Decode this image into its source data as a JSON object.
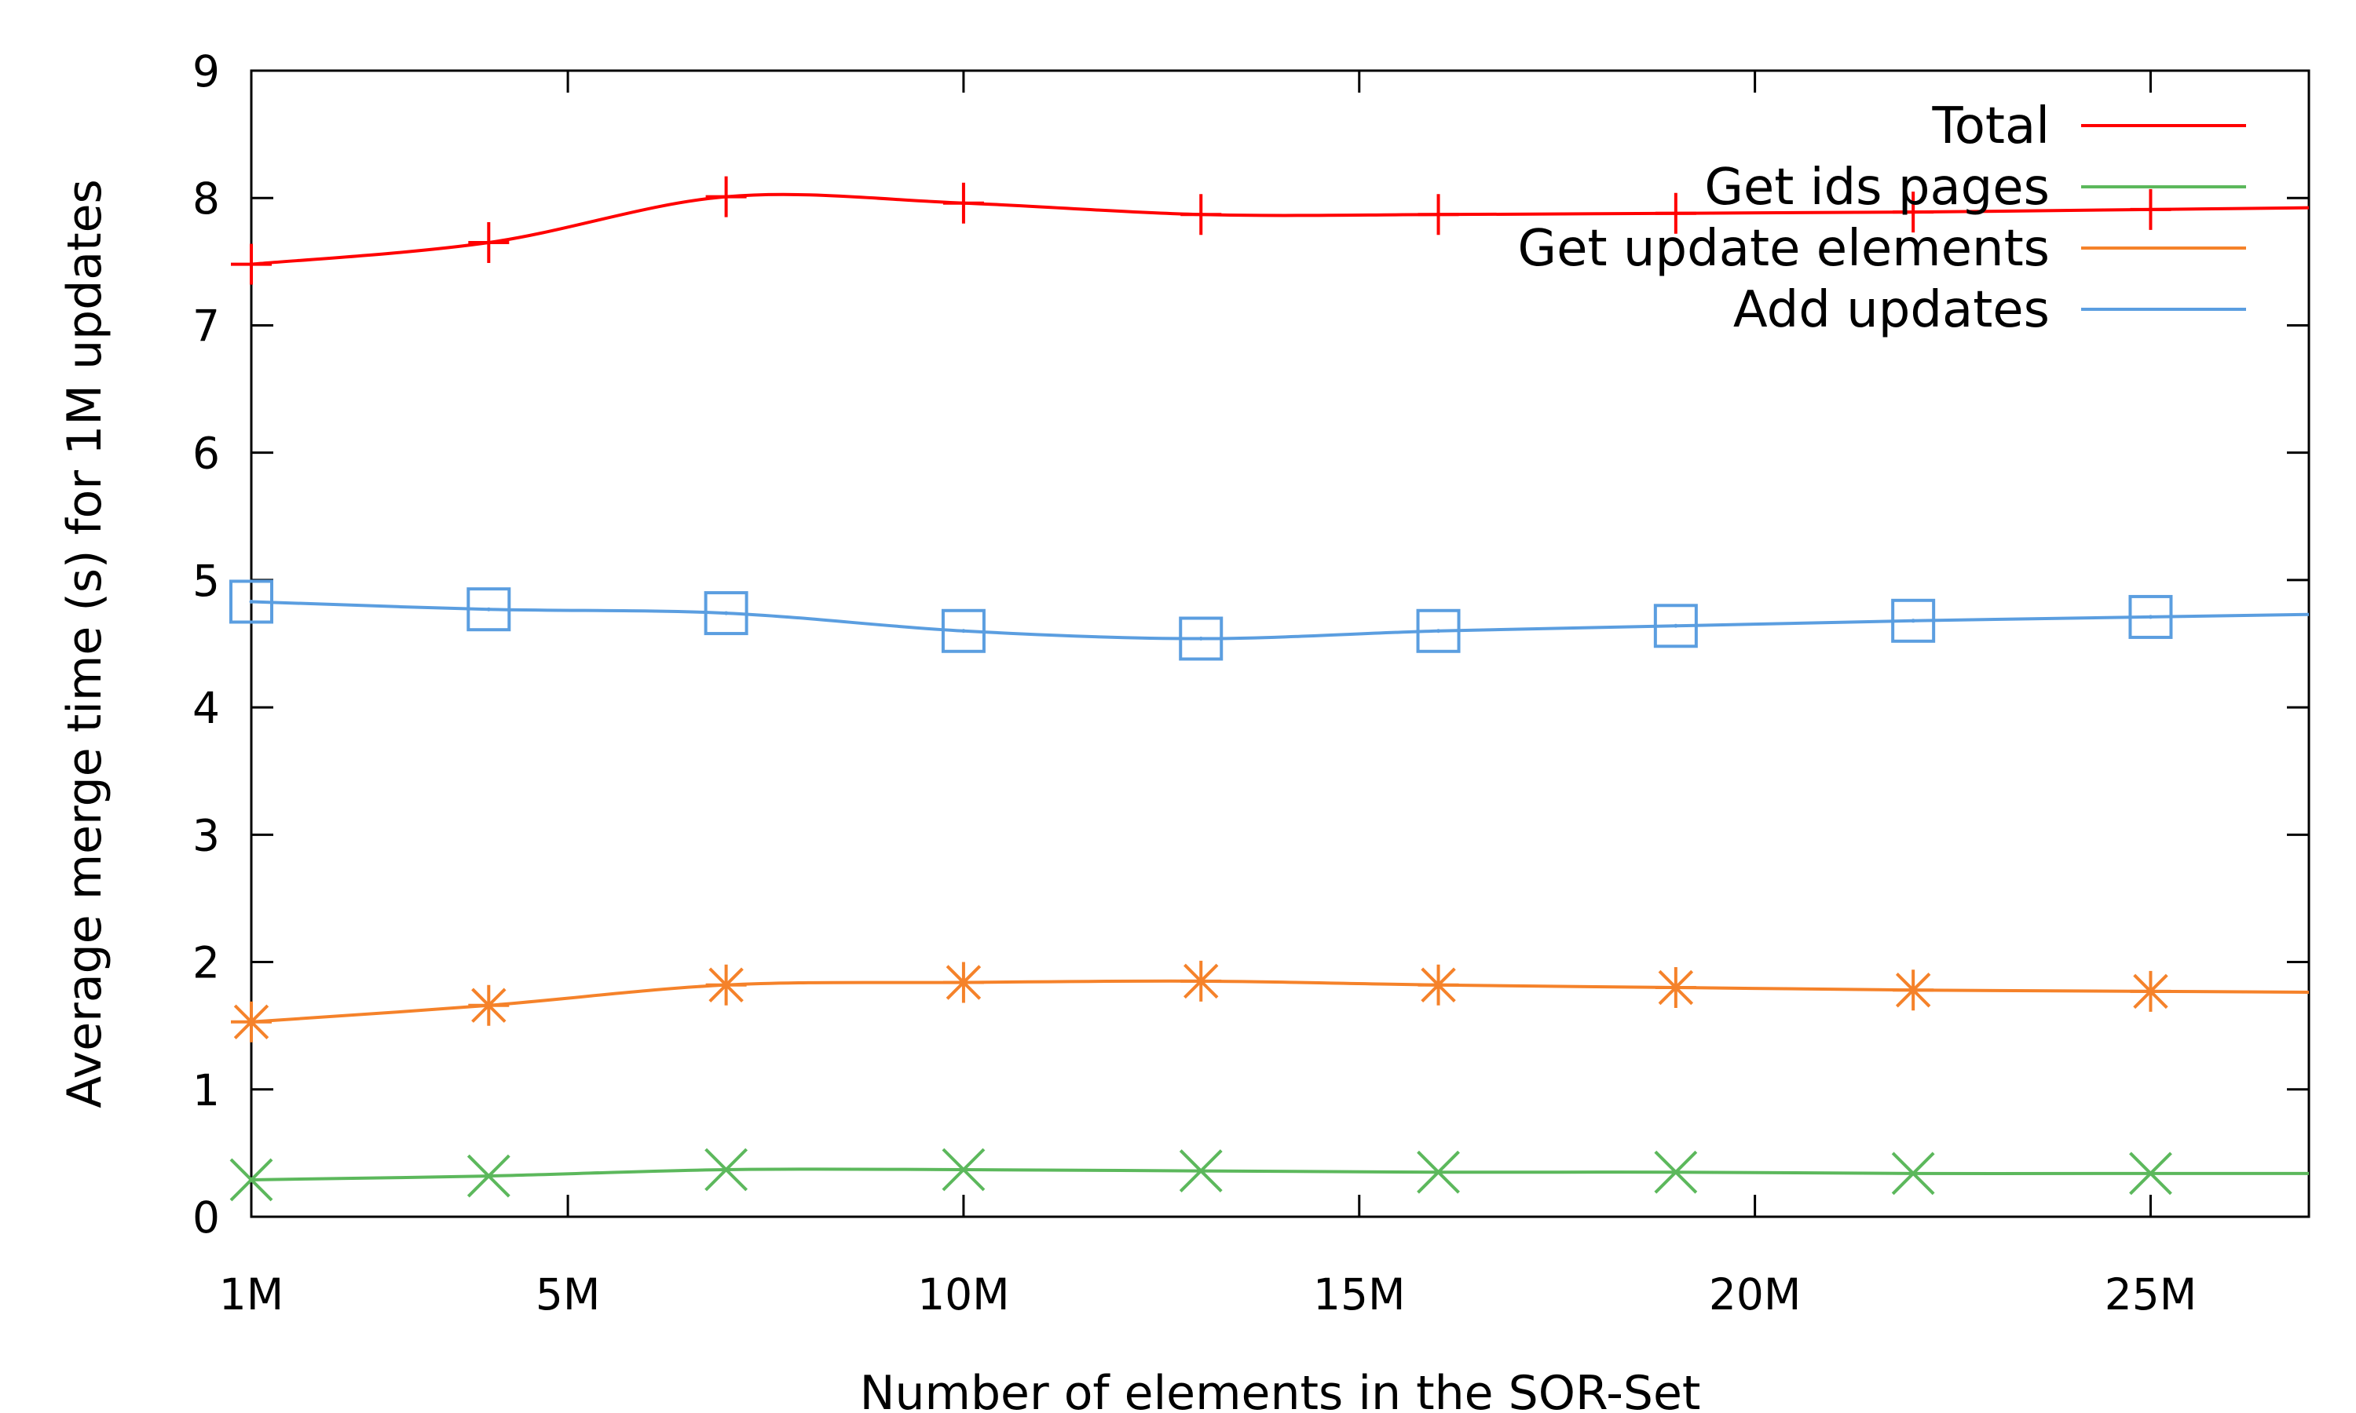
{
  "chart_data": {
    "type": "line",
    "title": "",
    "xlabel": "Number of elements in the SOR-Set",
    "ylabel": "Average merge time (s) for 1M updates",
    "xlim": [
      1,
      27
    ],
    "ylim": [
      0,
      9
    ],
    "x_ticks": [
      {
        "value": 1,
        "label": "1M"
      },
      {
        "value": 5,
        "label": "5M"
      },
      {
        "value": 10,
        "label": "10M"
      },
      {
        "value": 15,
        "label": "15M"
      },
      {
        "value": 20,
        "label": "20M"
      },
      {
        "value": 25,
        "label": "25M"
      }
    ],
    "y_ticks": [
      0,
      1,
      2,
      3,
      4,
      5,
      6,
      7,
      8,
      9
    ],
    "grid": false,
    "legend_position": "top-right",
    "x": [
      1,
      4,
      7,
      10,
      13,
      16,
      19,
      22,
      25
    ],
    "series": [
      {
        "name": "Total",
        "color": "#ff0000",
        "marker": "plus",
        "values": [
          7.48,
          7.65,
          8.01,
          7.96,
          7.87,
          7.87,
          7.88,
          7.89,
          7.91
        ]
      },
      {
        "name": "Get ids pages",
        "color": "#5cb85c",
        "marker": "cross",
        "values": [
          0.29,
          0.32,
          0.37,
          0.37,
          0.36,
          0.35,
          0.35,
          0.34,
          0.34
        ]
      },
      {
        "name": "Get update elements",
        "color": "#f5822a",
        "marker": "star",
        "values": [
          1.53,
          1.66,
          1.82,
          1.84,
          1.85,
          1.82,
          1.8,
          1.78,
          1.77
        ]
      },
      {
        "name": "Add updates",
        "color": "#5b9ee0",
        "marker": "square",
        "values": [
          4.83,
          4.77,
          4.74,
          4.6,
          4.54,
          4.6,
          4.64,
          4.68,
          4.71
        ]
      }
    ]
  }
}
